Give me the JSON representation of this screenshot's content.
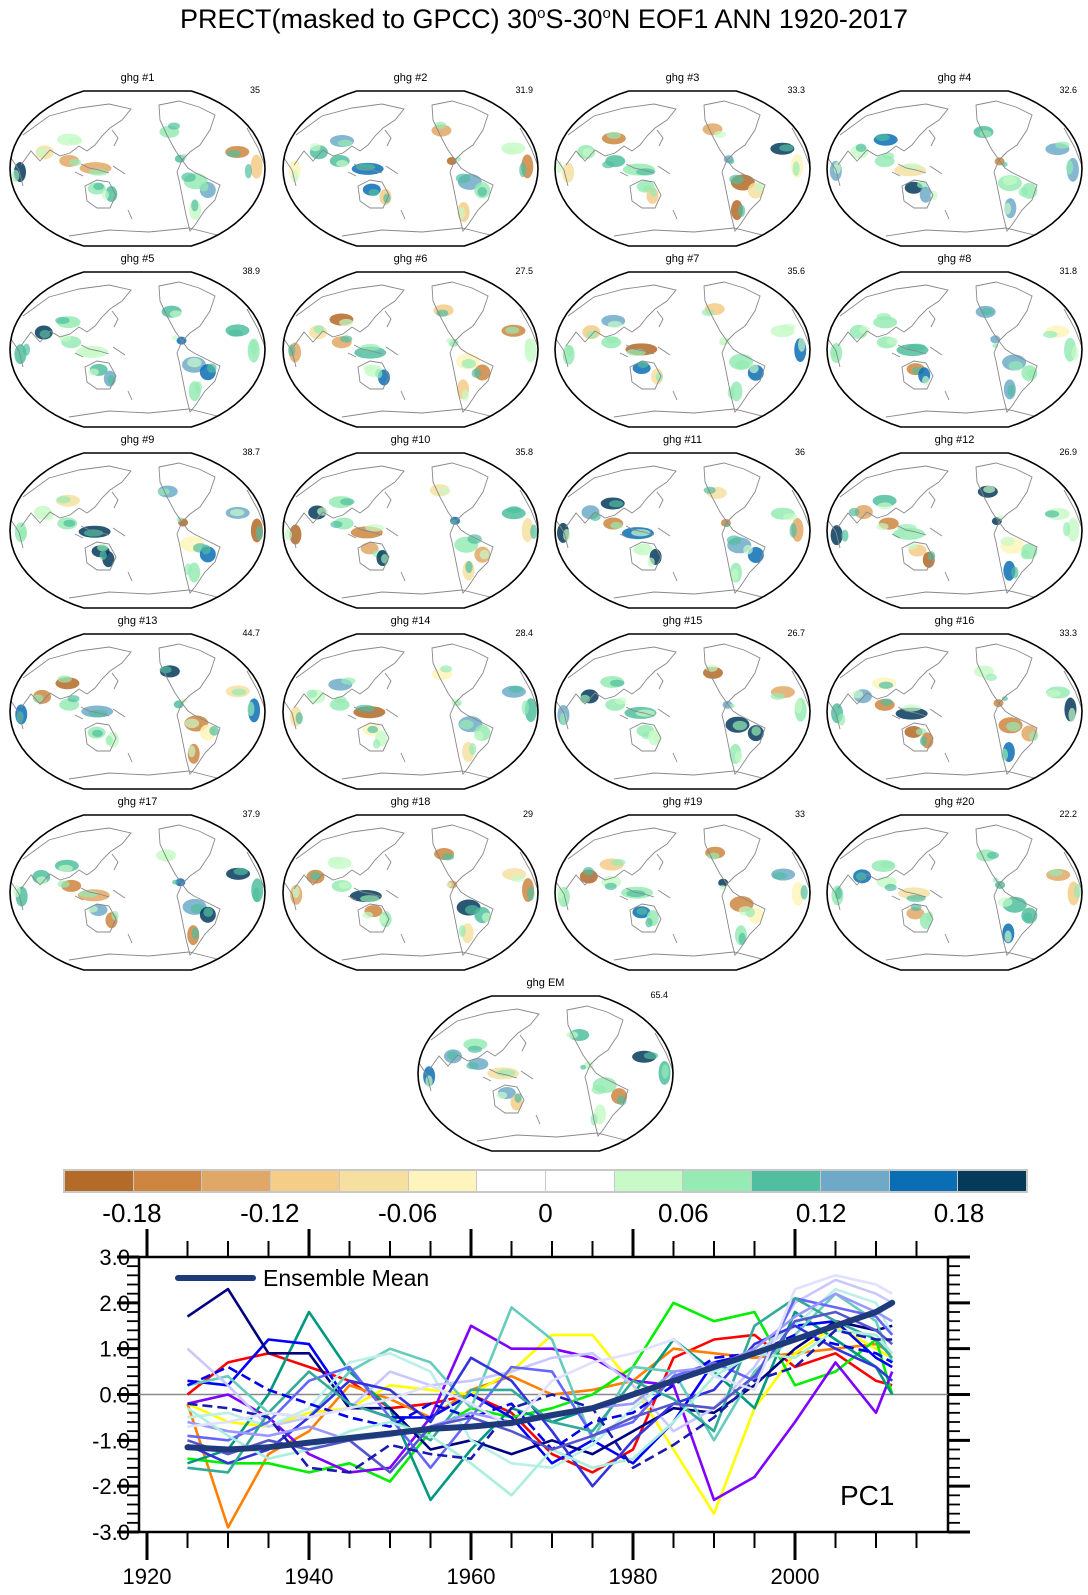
{
  "title_parts": {
    "a": "PRECT(masked to GPCC) 30",
    "deg1": "o",
    "b": "S-30",
    "deg2": "o",
    "c": "N EOF1 ANN 1920-2017"
  },
  "panels": [
    {
      "title": "ghg #1",
      "value": "35"
    },
    {
      "title": "ghg #2",
      "value": "31.9"
    },
    {
      "title": "ghg #3",
      "value": "33.3"
    },
    {
      "title": "ghg #4",
      "value": "32.6"
    },
    {
      "title": "ghg #5",
      "value": "38.9"
    },
    {
      "title": "ghg #6",
      "value": "27.5"
    },
    {
      "title": "ghg #7",
      "value": "35.6"
    },
    {
      "title": "ghg #8",
      "value": "31.8"
    },
    {
      "title": "ghg #9",
      "value": "38.7"
    },
    {
      "title": "ghg #10",
      "value": "35.8"
    },
    {
      "title": "ghg #11",
      "value": "36"
    },
    {
      "title": "ghg #12",
      "value": "26.9"
    },
    {
      "title": "ghg #13",
      "value": "44.7"
    },
    {
      "title": "ghg #14",
      "value": "28.4"
    },
    {
      "title": "ghg #15",
      "value": "26.7"
    },
    {
      "title": "ghg #16",
      "value": "33.3"
    },
    {
      "title": "ghg #17",
      "value": "37.9"
    },
    {
      "title": "ghg #18",
      "value": "29"
    },
    {
      "title": "ghg #19",
      "value": "33"
    },
    {
      "title": "ghg #20",
      "value": "22.2"
    }
  ],
  "em_panel": {
    "title": "ghg EM",
    "value": "65.4"
  },
  "colorbar": {
    "colors": [
      "#b46a28",
      "#cd853f",
      "#e0a866",
      "#f5cd87",
      "#f5e0a0",
      "#fff5bc",
      "#ffffff",
      "#ffffff",
      "#c8fac8",
      "#96ebb4",
      "#50be9f",
      "#6eaac8",
      "#0a6eb4",
      "#053a5a"
    ],
    "labels": [
      "-0.18",
      "-0.12",
      "-0.06",
      "0",
      "0.06",
      "0.12",
      "0.18"
    ]
  },
  "chart_data": {
    "type": "line",
    "annotation": "PC1",
    "legend": {
      "label": "Ensemble Mean",
      "placement": "top-left"
    },
    "xlim": [
      1919,
      2020
    ],
    "ylim": [
      -3.0,
      3.0
    ],
    "x_ticks": [
      "1920",
      "1940",
      "1960",
      "1980",
      "2000"
    ],
    "y_ticks": [
      "3.0",
      "2.0",
      "1.0",
      "0.0",
      "-1.0",
      "-2.0",
      "-3.0"
    ],
    "zero_line": true,
    "x": [
      1925,
      1930,
      1935,
      1940,
      1945,
      1950,
      1955,
      1960,
      1965,
      1970,
      1975,
      1980,
      1985,
      1990,
      1995,
      2000,
      2005,
      2010,
      2012
    ],
    "ensemble_mean": {
      "name": "Ensemble Mean",
      "color": "#1f3a7a",
      "values": [
        -1.15,
        -1.2,
        -1.15,
        -1.05,
        -0.95,
        -0.85,
        -0.75,
        -0.7,
        -0.62,
        -0.45,
        -0.3,
        0.0,
        0.3,
        0.6,
        0.9,
        1.2,
        1.5,
        1.8,
        2.0
      ]
    },
    "members": [
      {
        "color": "#ff0000",
        "values": [
          0.0,
          0.7,
          0.9,
          0.6,
          0.3,
          -0.3,
          -0.2,
          0.0,
          -0.4,
          -1.3,
          -1.7,
          -1.2,
          0.8,
          1.2,
          1.3,
          0.6,
          0.9,
          0.3,
          0.2
        ]
      },
      {
        "color": "#ff8000",
        "values": [
          -0.2,
          -2.9,
          -1.3,
          -0.8,
          0.2,
          -0.1,
          -0.5,
          0.1,
          0.4,
          0.0,
          0.1,
          0.3,
          1.0,
          0.9,
          0.8,
          0.9,
          1.0,
          1.1,
          0.9
        ]
      },
      {
        "color": "#ffff00",
        "values": [
          -0.2,
          -0.6,
          -0.7,
          -0.4,
          -0.3,
          0.2,
          0.1,
          0.0,
          0.5,
          1.3,
          1.3,
          0.2,
          -1.2,
          -2.6,
          -0.3,
          0.9,
          1.5,
          1.0,
          0.8
        ]
      },
      {
        "color": "#00ee00",
        "values": [
          -1.4,
          -1.5,
          -1.5,
          -1.7,
          -1.5,
          -1.9,
          -0.8,
          -0.3,
          -0.5,
          -0.3,
          0.0,
          0.6,
          2.0,
          1.6,
          1.8,
          0.2,
          0.5,
          1.2,
          0.0
        ]
      },
      {
        "color": "#8000ff",
        "values": [
          -0.2,
          0.0,
          -0.5,
          -1.3,
          -1.7,
          -1.6,
          -0.5,
          1.5,
          1.0,
          1.0,
          0.8,
          0.3,
          0.2,
          -2.3,
          -1.8,
          -0.6,
          0.7,
          -0.4,
          0.5
        ]
      },
      {
        "color": "#009980",
        "values": [
          -1.5,
          -1.2,
          0.0,
          1.8,
          0.5,
          -0.3,
          -2.3,
          -1.2,
          -0.3,
          -0.6,
          -0.3,
          0.0,
          1.2,
          0.5,
          -0.3,
          1.8,
          1.2,
          0.6,
          0.0
        ]
      },
      {
        "color": "#0000ff",
        "values": [
          0.3,
          0.2,
          1.2,
          1.1,
          -0.2,
          -0.5,
          -0.5,
          0.0,
          -0.5,
          -1.5,
          -1.0,
          -1.5,
          -0.6,
          0.7,
          0.9,
          1.5,
          1.6,
          0.8,
          0.6
        ]
      },
      {
        "color": "#000080",
        "values": [
          1.7,
          2.3,
          0.9,
          0.9,
          -0.3,
          -0.3,
          -1.2,
          -1.0,
          -1.3,
          -1.0,
          -1.3,
          -0.8,
          -0.3,
          -0.4,
          0.2,
          1.0,
          1.6,
          1.4,
          1.5
        ]
      },
      {
        "color": "#66ccbb",
        "values": [
          0.2,
          0.4,
          -0.4,
          -0.5,
          0.5,
          1.0,
          0.7,
          -0.3,
          1.9,
          1.2,
          -1.0,
          0.6,
          0.5,
          -1.0,
          0.5,
          1.3,
          2.2,
          1.6,
          0.7
        ]
      },
      {
        "color": "#bbf0e8",
        "values": [
          -0.5,
          -0.4,
          -0.7,
          -0.3,
          0.7,
          0.9,
          0.5,
          -1.0,
          -1.5,
          -1.6,
          -1.1,
          -0.3,
          0.4,
          0.5,
          0.9,
          1.5,
          2.3,
          2.0,
          1.3
        ]
      },
      {
        "color": "#c8c8ff",
        "values": [
          1.0,
          0.2,
          -0.7,
          -0.5,
          -0.3,
          0.5,
          0.2,
          0.3,
          0.5,
          0.8,
          0.9,
          0.2,
          -0.8,
          -0.3,
          0.6,
          2.0,
          2.5,
          2.2,
          2.0
        ]
      },
      {
        "color": "#6666ff",
        "values": [
          -0.9,
          -1.0,
          -0.6,
          0.3,
          0.6,
          -0.5,
          -1.6,
          -0.5,
          0.6,
          0.5,
          -0.9,
          -0.6,
          0.4,
          0.7,
          0.3,
          2.1,
          1.9,
          1.7,
          1.3
        ]
      },
      {
        "color": "#3333dd",
        "values": [
          -1.1,
          -1.5,
          -1.2,
          -0.5,
          0.3,
          0.1,
          -0.6,
          0.8,
          0.3,
          -0.8,
          -2.0,
          -1.0,
          -0.2,
          0.1,
          1.1,
          1.5,
          1.0,
          0.6,
          0.3
        ]
      },
      {
        "color": "#33aa99",
        "values": [
          -1.6,
          -1.7,
          -0.4,
          0.5,
          -0.2,
          -0.5,
          -1.0,
          0.1,
          0.1,
          -0.6,
          -0.8,
          0.3,
          -0.1,
          -0.8,
          1.5,
          2.1,
          1.6,
          1.2,
          0.8
        ]
      },
      {
        "color": "#0000ee",
        "dashed": true,
        "values": [
          0.2,
          0.6,
          0.1,
          -0.2,
          -0.5,
          -0.7,
          -0.2,
          -0.5,
          -0.2,
          -1.2,
          -0.6,
          -0.4,
          0.2,
          0.8,
          0.9,
          1.3,
          1.1,
          0.9,
          0.7
        ]
      },
      {
        "color": "#9999ff",
        "values": [
          -0.6,
          -0.8,
          -0.9,
          -0.7,
          -1.0,
          -0.9,
          -0.7,
          -0.4,
          -0.6,
          -0.5,
          -0.3,
          -0.2,
          0.5,
          0.6,
          1.0,
          1.7,
          2.2,
          1.8,
          1.6
        ]
      },
      {
        "color": "#aaeedd",
        "values": [
          -0.3,
          -0.9,
          -1.4,
          -1.2,
          -0.8,
          -0.6,
          -0.9,
          -1.5,
          -2.2,
          -1.2,
          -1.6,
          -1.4,
          -0.6,
          0.4,
          0.9,
          0.8,
          1.4,
          1.3,
          0.9
        ]
      },
      {
        "color": "#5555cc",
        "values": [
          -1.0,
          -1.3,
          -1.0,
          -1.2,
          -1.0,
          -1.7,
          -0.7,
          -0.5,
          -0.8,
          -1.2,
          -0.9,
          -0.5,
          -0.2,
          -0.3,
          0.4,
          1.6,
          1.8,
          1.4,
          1.1
        ]
      },
      {
        "color": "#1a1ab0",
        "dashed": true,
        "values": [
          -0.2,
          -0.3,
          -0.5,
          -1.6,
          -1.7,
          -1.1,
          -1.3,
          -1.4,
          -0.3,
          0.0,
          -0.3,
          -1.6,
          -1.1,
          -0.5,
          0.3,
          0.6,
          1.4,
          1.2,
          1.2
        ]
      },
      {
        "color": "#e0e0ff",
        "values": [
          -0.7,
          -0.6,
          -0.4,
          -0.5,
          -0.3,
          -0.1,
          0.2,
          -0.2,
          -0.7,
          0.3,
          0.7,
          0.9,
          1.2,
          0.4,
          0.1,
          2.3,
          2.6,
          2.4,
          2.2
        ]
      }
    ]
  }
}
